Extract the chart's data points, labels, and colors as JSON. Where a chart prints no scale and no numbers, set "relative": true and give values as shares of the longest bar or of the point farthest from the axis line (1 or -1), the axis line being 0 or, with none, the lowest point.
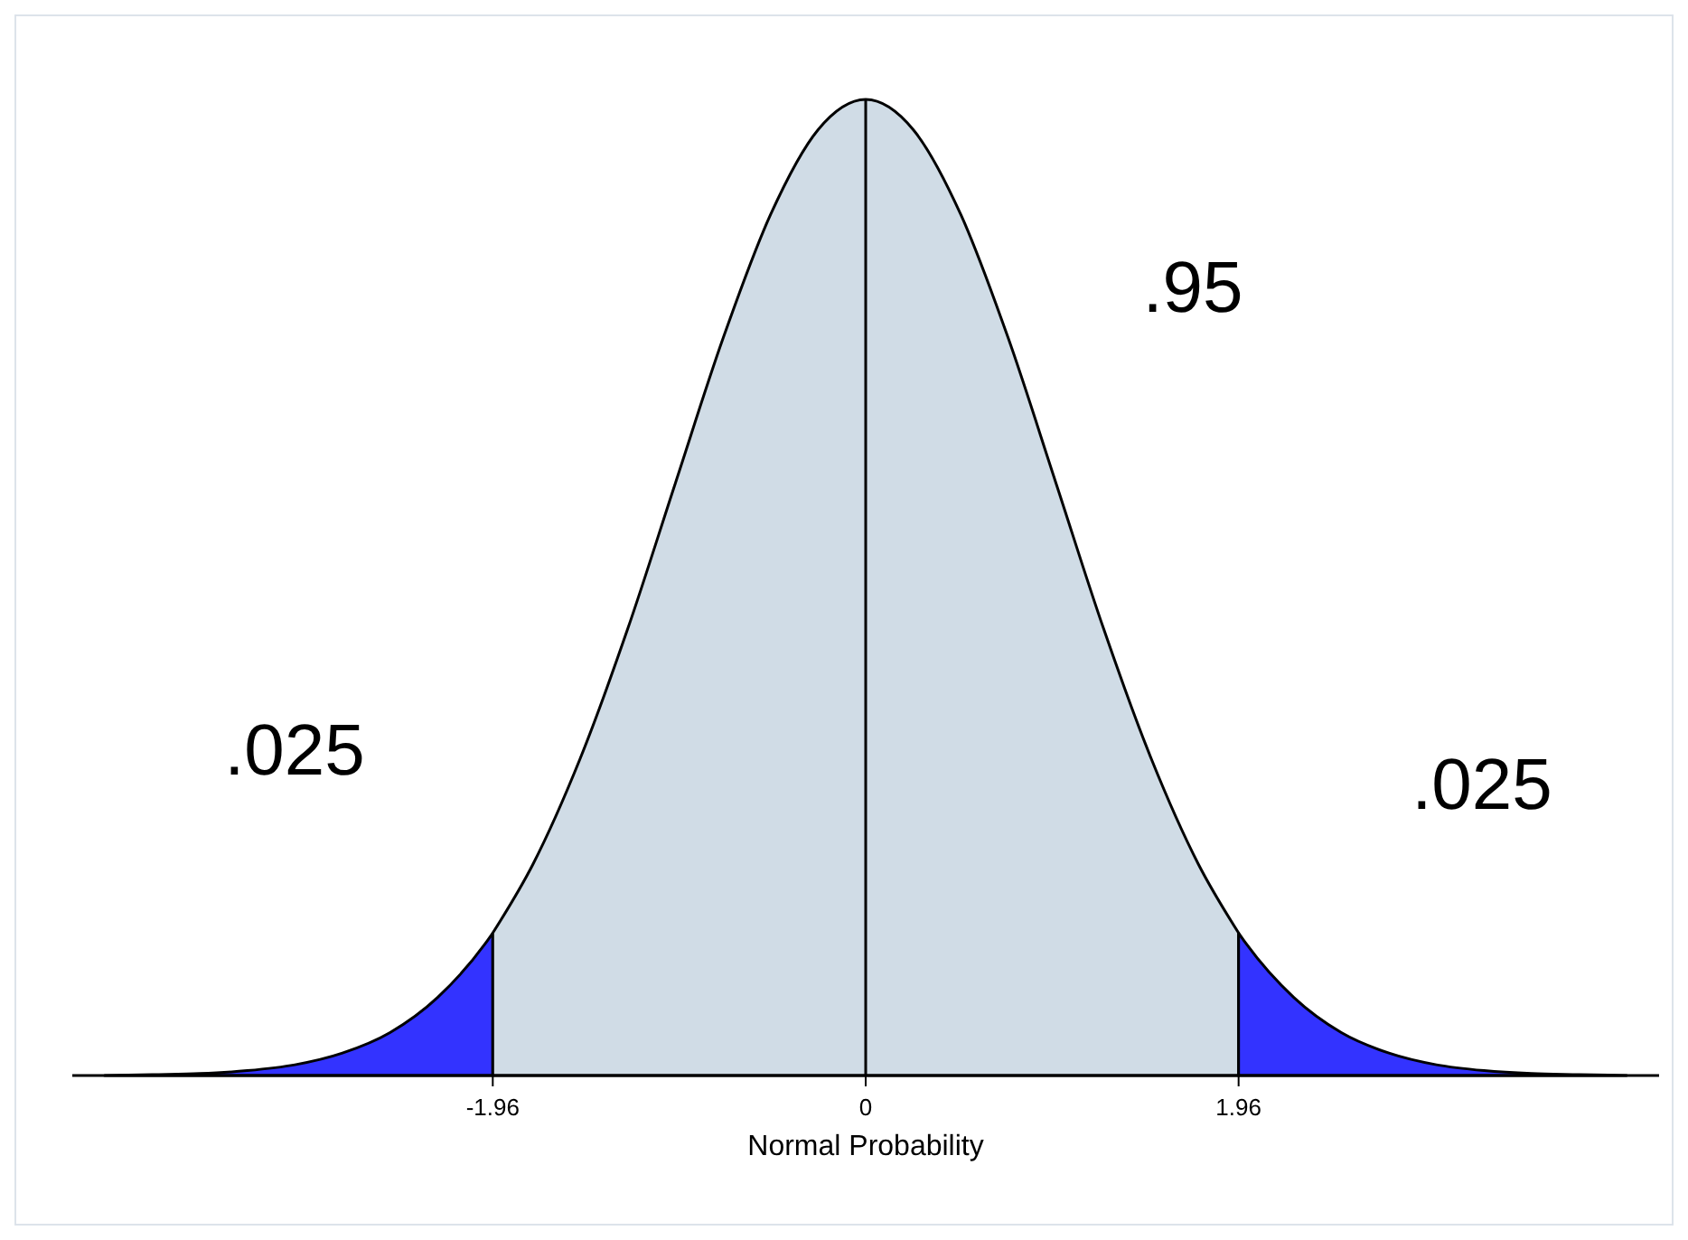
{
  "chart_data": {
    "type": "area",
    "relative": true,
    "xlabel": "Normal Probability",
    "xlim": [
      -4.17,
      4.17
    ],
    "xticks": [
      -1.96,
      0,
      1.96
    ],
    "series": [
      {
        "color": "#3333ff",
        "x": [
          -4,
          -3.75,
          -3.5,
          -3.25,
          -3,
          -2.75,
          -2.5,
          -2.25,
          -2,
          -1.96
        ],
        "values": [
          0,
          0.001,
          0.002,
          0.005,
          0.011,
          0.023,
          0.044,
          0.08,
          0.135,
          0.146
        ]
      },
      {
        "color": "#d0dce6",
        "x": [
          -1.96,
          -1.75,
          -1.5,
          -1.25,
          -1,
          -0.75,
          -0.5,
          -0.25,
          0,
          0.25,
          0.5,
          0.75,
          1,
          1.25,
          1.5,
          1.75,
          1.96
        ],
        "values": [
          0.146,
          0.216,
          0.325,
          0.458,
          0.607,
          0.755,
          0.882,
          0.969,
          1,
          0.969,
          0.882,
          0.755,
          0.607,
          0.458,
          0.325,
          0.216,
          0.146
        ]
      },
      {
        "color": "#3333ff",
        "x": [
          1.96,
          2,
          2.25,
          2.5,
          2.75,
          3,
          3.25,
          3.5,
          3.75,
          4
        ],
        "values": [
          0.146,
          0.135,
          0.08,
          0.044,
          0.023,
          0.011,
          0.005,
          0.002,
          0.001,
          0
        ]
      }
    ],
    "ref_lines": [
      {
        "axis": "x",
        "value": 0,
        "color": "#000000"
      }
    ],
    "annotations": [
      ".95",
      ".025",
      ".025"
    ]
  }
}
